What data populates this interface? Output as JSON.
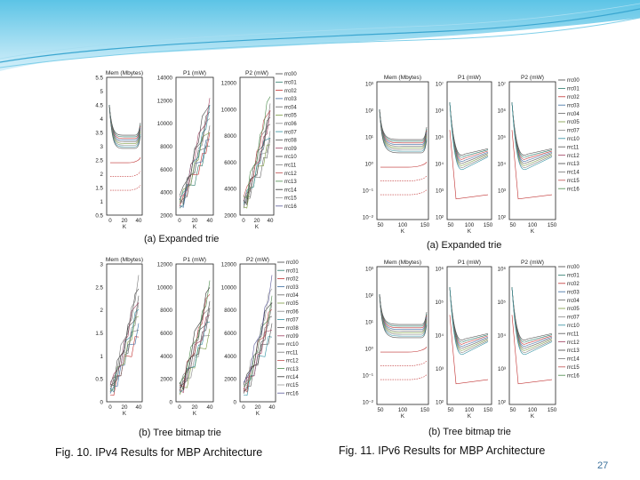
{
  "legend": [
    "rrc00",
    "rrc01",
    "rrc02",
    "rrc03",
    "rrc04",
    "rrc05",
    "rrc06",
    "rrc07",
    "rrc08",
    "rrc09",
    "rrc10",
    "rrc11",
    "rrc12",
    "rrc13",
    "rrc14",
    "rrc15",
    "rrc16"
  ],
  "legend_ipv6": [
    "rrc00",
    "rrc01",
    "rrc02",
    "rrc03",
    "rrc04",
    "rrc05",
    "rrc07",
    "rrc10",
    "rrc11",
    "rrc12",
    "rrc13",
    "rrc14",
    "rrc15",
    "rrc16"
  ],
  "panel_titles": [
    "Mem (Mbytes)",
    "P1 (mW)",
    "P2 (mW)"
  ],
  "xlabel": "K",
  "fig10": {
    "caption": "Fig. 10.  IPv4 Results for MBP Architecture",
    "a_caption": "(a) Expanded trie",
    "b_caption": "(b) Tree bitmap trie",
    "a_mem_ticks": [
      "5.5",
      "5",
      "4.5",
      "4",
      "3.5",
      "3",
      "2.5",
      "2",
      "1.5",
      "1",
      "0.5"
    ],
    "a_p_ticks": [
      "14000",
      "12000",
      "10000",
      "8000",
      "6000",
      "4000",
      "2000"
    ],
    "a_p2_ticks": [
      "12000",
      "10000",
      "8000",
      "6000",
      "4000",
      "2000"
    ],
    "b_mem_ticks": [
      "3",
      "2.5",
      "2",
      "1.5",
      "1",
      "0.5",
      "0"
    ],
    "b_p_ticks": [
      "12000",
      "10000",
      "8000",
      "6000",
      "4000",
      "2000",
      "0"
    ],
    "x_ticks": [
      "0",
      "20",
      "40"
    ]
  },
  "fig11": {
    "caption": "Fig. 11.  IPv6 Results for MBP Architecture",
    "a_caption": "(a) Expanded trie",
    "b_caption": "(b) Tree bitmap trie",
    "a_mem_ticks": [
      "10³",
      "10²",
      "10¹",
      "10⁰",
      "10⁻¹",
      "10⁻²"
    ],
    "a_p_ticks": [
      "10⁷",
      "10⁶",
      "10⁵",
      "10⁴",
      "10³",
      "10²"
    ],
    "b_mem_ticks": [
      "10³",
      "10²",
      "10¹",
      "10⁰",
      "10⁻¹",
      "10⁻²"
    ],
    "b_p_ticks": [
      "10⁶",
      "10⁵",
      "10⁴",
      "10³",
      "10²"
    ],
    "x_ticks": [
      "50",
      "100",
      "150"
    ]
  },
  "slide_number": "27"
}
